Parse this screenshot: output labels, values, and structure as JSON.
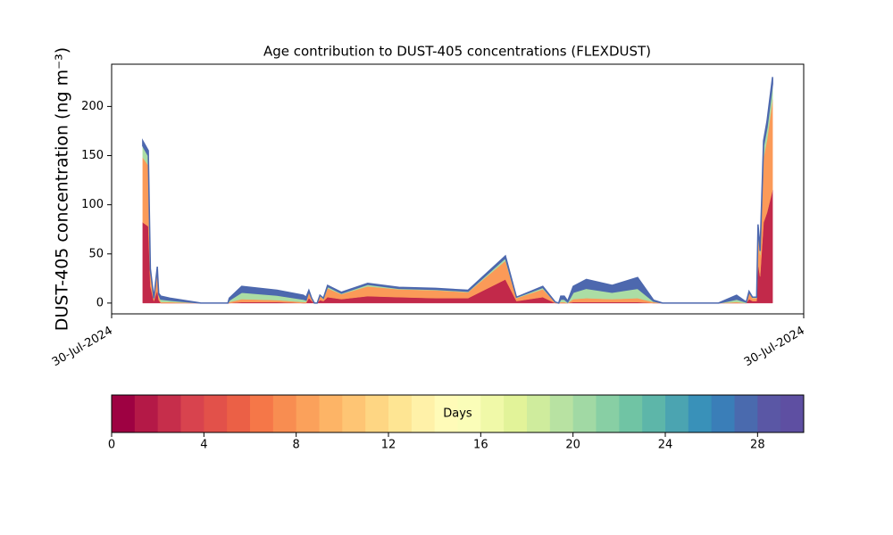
{
  "chart_data": {
    "type": "stacked-area",
    "title": "Age contribution to DUST-405 concentrations (FLEXDUST)",
    "ylabel": "DUST-405 concentration (ng m⁻³)",
    "x": [
      4.5,
      5.3,
      5.6,
      6.1,
      6.6,
      6.8,
      7.1,
      8.4,
      12.9,
      16.8,
      17.0,
      18.8,
      23.9,
      27.7,
      28.1,
      28.5,
      28.9,
      29.3,
      29.7,
      30.1,
      30.6,
      31.2,
      33.2,
      37.0,
      41.5,
      46.8,
      51.5,
      56.9,
      58.5,
      62.3,
      64.1,
      64.6,
      64.9,
      65.4,
      65.9,
      66.7,
      68.6,
      72.3,
      76.0,
      78.3,
      79.6,
      87.7,
      90.3,
      91.7,
      92.1,
      92.6,
      93.2,
      93.4,
      93.7,
      94.2,
      94.7,
      95.5
    ],
    "series": [
      {
        "color": "#c2294a",
        "values": [
          82,
          78,
          17,
          2,
          13,
          3,
          0,
          0,
          0,
          0,
          0,
          1,
          1,
          0,
          0,
          5,
          2,
          0,
          0,
          3,
          2,
          6,
          4,
          7,
          6,
          5,
          5,
          24,
          2,
          6,
          0,
          0,
          0,
          0,
          0,
          1,
          1,
          1,
          1,
          0,
          0,
          0,
          0,
          0,
          4,
          2,
          2,
          40,
          27,
          82,
          92,
          115
        ]
      },
      {
        "color": "#fb9a58",
        "values": [
          66,
          62,
          14,
          2,
          18,
          5,
          1,
          1,
          0,
          0,
          1,
          3,
          2,
          1,
          1,
          6,
          2,
          0,
          0,
          4,
          2,
          9,
          5,
          10,
          8,
          8,
          6,
          19,
          3,
          8,
          1,
          0,
          1,
          1,
          0,
          3,
          4,
          3,
          4,
          1,
          0,
          0,
          1,
          0,
          6,
          3,
          3,
          32,
          22,
          66,
          74,
          92
        ]
      },
      {
        "color": "#abdda4",
        "values": [
          12,
          10,
          3,
          1,
          4,
          1,
          3,
          2,
          0,
          0,
          2,
          7,
          5,
          3,
          2,
          1,
          1,
          0,
          0,
          1,
          1,
          2,
          1,
          2,
          1,
          1,
          1,
          3,
          1,
          2,
          0,
          0,
          3,
          3,
          1,
          7,
          10,
          7,
          10,
          1,
          0,
          0,
          3,
          1,
          1,
          1,
          1,
          6,
          4,
          12,
          13,
          16
        ]
      },
      {
        "color": "#4d68ae",
        "values": [
          5,
          5,
          1,
          0,
          2,
          1,
          3,
          2,
          0,
          0,
          2,
          6,
          5,
          4,
          3,
          1,
          0,
          0,
          0,
          0,
          0,
          1,
          1,
          1,
          1,
          1,
          1,
          2,
          0,
          1,
          0,
          0,
          3,
          3,
          1,
          6,
          9,
          7,
          11,
          1,
          0,
          0,
          4,
          0,
          1,
          0,
          0,
          2,
          2,
          5,
          6,
          7
        ]
      }
    ],
    "xlim": [
      0,
      100
    ],
    "xticks": [
      {
        "value": 0,
        "label": "30-Jul-2024"
      },
      {
        "value": 100,
        "label": "30-Jul-2024"
      }
    ],
    "ylim": [
      -11,
      243
    ],
    "yticks": [
      0,
      50,
      100,
      150,
      200
    ],
    "colorbar": {
      "label": "Days",
      "lim": [
        0,
        30
      ],
      "ticks": [
        0,
        4,
        8,
        12,
        16,
        20,
        24,
        28
      ],
      "colors": [
        "#9e0142",
        "#b41947",
        "#c62e4b",
        "#d8434e",
        "#e2514a",
        "#eb6046",
        "#f57748",
        "#f88d51",
        "#fba15b",
        "#fdb466",
        "#fec574",
        "#fed683",
        "#fee593",
        "#fff1a8",
        "#fffbb8",
        "#fafdb8",
        "#f0f9a8",
        "#e2f399",
        "#cfec9d",
        "#b8e2a2",
        "#a1d9a4",
        "#88cfa4",
        "#70c4a4",
        "#5db6a9",
        "#4ba4b1",
        "#3991b9",
        "#3a7eb8",
        "#4a6aae",
        "#5a57a5",
        "#5e4fa2"
      ]
    }
  }
}
